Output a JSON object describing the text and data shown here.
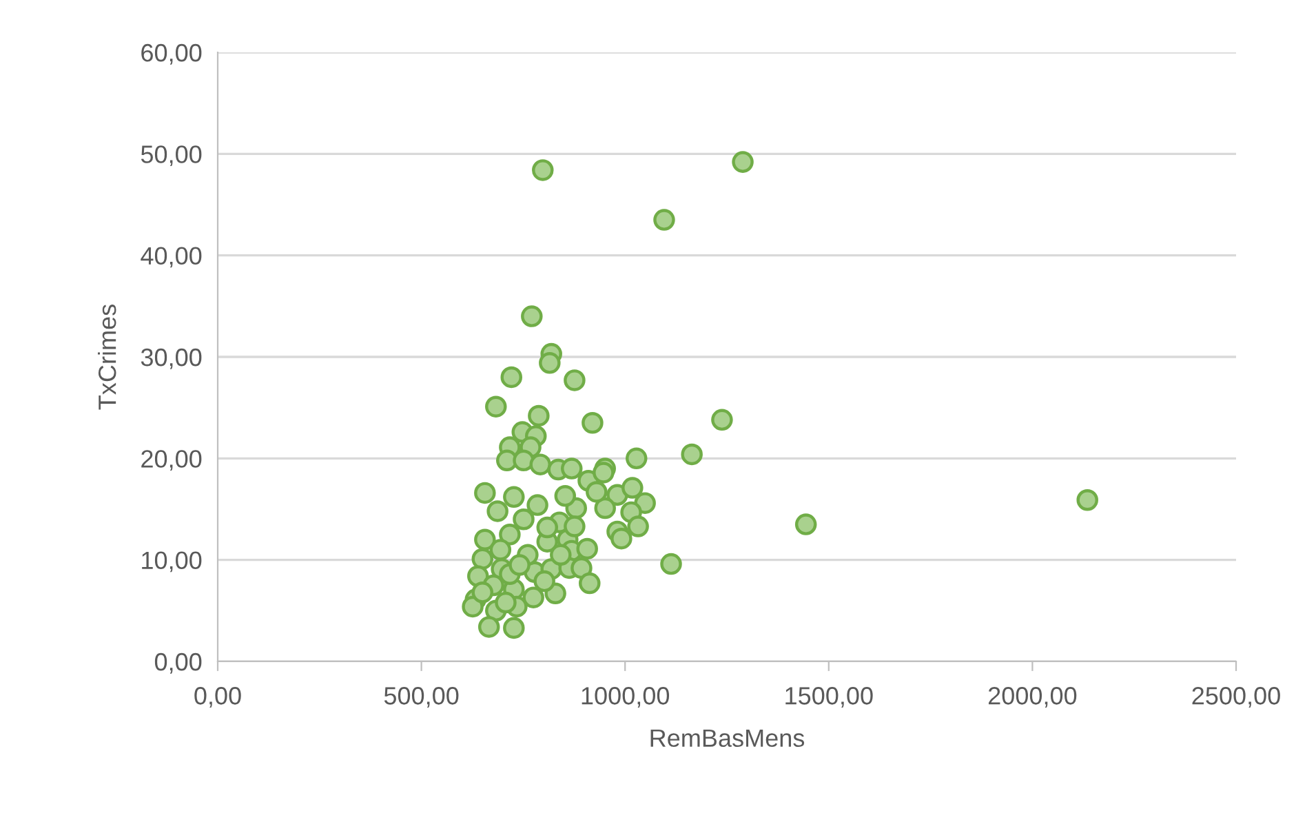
{
  "chart_data": {
    "type": "scatter",
    "xlabel": "RemBasMens",
    "ylabel": "TxCrimes",
    "x": [
      1289,
      1096,
      798,
      1444,
      2135,
      1238,
      1164,
      1113,
      1028,
      771,
      819,
      815,
      721,
      876,
      683,
      788,
      920,
      748,
      781,
      717,
      768,
      710,
      751,
      792,
      836,
      869,
      951,
      656,
      687,
      727,
      785,
      839,
      880,
      910,
      947,
      981,
      1018,
      1049,
      951,
      1015,
      1032,
      981,
      991,
      717,
      809,
      859,
      656,
      694,
      869,
      907,
      650,
      697,
      778,
      819,
      863,
      893,
      639,
      677,
      727,
      913,
      829,
      633,
      775,
      734,
      683,
      626,
      666,
      727,
      751,
      809,
      761,
      842,
      717,
      650,
      707,
      802,
      741,
      876,
      853,
      930
    ],
    "series": [
      {
        "color": "#a9d18e",
        "values": [
          49.2,
          43.5,
          48.4,
          13.5,
          15.9,
          23.8,
          20.4,
          9.6,
          20.0,
          34.0,
          30.3,
          29.4,
          28.0,
          27.7,
          25.1,
          24.2,
          23.5,
          22.6,
          22.2,
          21.1,
          21.1,
          19.8,
          19.8,
          19.4,
          18.9,
          19.0,
          19.0,
          16.6,
          14.8,
          16.2,
          15.4,
          13.7,
          15.1,
          17.8,
          18.6,
          16.4,
          17.1,
          15.6,
          15.1,
          14.7,
          13.3,
          12.8,
          12.1,
          12.5,
          11.8,
          12.0,
          12.0,
          11.0,
          10.9,
          11.1,
          10.1,
          9.1,
          8.8,
          9.1,
          9.2,
          9.2,
          8.4,
          7.5,
          7.1,
          7.7,
          6.7,
          6.1,
          6.3,
          5.4,
          5.0,
          5.4,
          3.4,
          3.3,
          14.0,
          13.2,
          10.5,
          10.5,
          8.6,
          6.8,
          5.8,
          7.9,
          9.5,
          13.3,
          16.3,
          16.7
        ]
      }
    ],
    "marker": "circle",
    "grid": "y",
    "legend": false,
    "xlim": [
      0,
      2500
    ],
    "xticks": [
      {
        "value": 0,
        "label": "0,00"
      },
      {
        "value": 500,
        "label": "500,00"
      },
      {
        "value": 1000,
        "label": "1000,00"
      },
      {
        "value": 1500,
        "label": "1500,00"
      },
      {
        "value": 2000,
        "label": "2000,00"
      },
      {
        "value": 2500,
        "label": "2500,00"
      }
    ],
    "ylim": [
      0,
      60
    ],
    "yticks": [
      {
        "value": 0,
        "label": "0,00"
      },
      {
        "value": 10,
        "label": "10,00"
      },
      {
        "value": 20,
        "label": "20,00"
      },
      {
        "value": 30,
        "label": "30,00"
      },
      {
        "value": 40,
        "label": "40,00"
      },
      {
        "value": 50,
        "label": "50,00"
      },
      {
        "value": 60,
        "label": "60,00"
      }
    ]
  }
}
